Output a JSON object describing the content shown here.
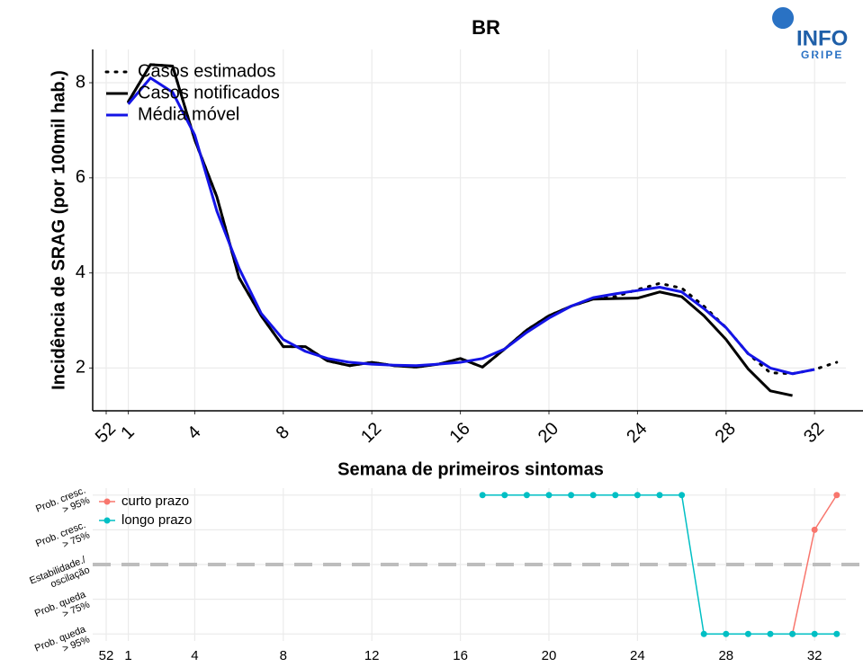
{
  "logo": {
    "top": "INFO",
    "bottom": "GRIPE"
  },
  "chart_data": [
    {
      "type": "line",
      "title": "BR",
      "x_label": "Semana de primeiros sintomas",
      "y_label": "Incidência de SRAG (por 100mil hab.)",
      "categories": [
        "52",
        "1",
        null,
        null,
        "4",
        null,
        null,
        null,
        "8",
        null,
        null,
        null,
        "12",
        null,
        null,
        null,
        "16",
        null,
        null,
        null,
        "20",
        null,
        null,
        null,
        "24",
        null,
        null,
        null,
        "28",
        null,
        null,
        null,
        "32",
        null
      ],
      "ylim": [
        1.1,
        8.7
      ],
      "yticks": [
        2,
        4,
        6,
        8
      ],
      "grid": true,
      "legend": "top-left",
      "series": [
        {
          "name": "Casos estimados",
          "color": "#000000",
          "style": "dotted",
          "values": [
            null,
            7.6,
            8.38,
            8.35,
            6.8,
            5.6,
            3.9,
            3.1,
            2.45,
            2.45,
            2.15,
            2.05,
            2.12,
            2.05,
            2.02,
            2.08,
            2.2,
            2.02,
            2.4,
            2.8,
            3.1,
            3.3,
            3.45,
            3.5,
            3.65,
            3.78,
            3.68,
            3.3,
            2.85,
            2.3,
            1.9,
            1.88,
            1.97,
            2.12
          ]
        },
        {
          "name": "Casos notificados",
          "color": "#000000",
          "style": "solid",
          "values": [
            null,
            7.6,
            8.38,
            8.35,
            6.8,
            5.6,
            3.9,
            3.1,
            2.45,
            2.45,
            2.15,
            2.05,
            2.12,
            2.05,
            2.02,
            2.08,
            2.2,
            2.02,
            2.4,
            2.8,
            3.1,
            3.3,
            3.45,
            3.46,
            3.47,
            3.6,
            3.5,
            3.1,
            2.6,
            1.98,
            1.52,
            1.42,
            null,
            null
          ]
        },
        {
          "name": "Média móvel",
          "color": "#1414e6",
          "style": "solid",
          "values": [
            null,
            7.55,
            8.1,
            7.8,
            6.9,
            5.3,
            4.1,
            3.15,
            2.6,
            2.35,
            2.2,
            2.12,
            2.08,
            2.06,
            2.05,
            2.08,
            2.12,
            2.2,
            2.4,
            2.75,
            3.05,
            3.3,
            3.48,
            3.56,
            3.63,
            3.7,
            3.6,
            3.25,
            2.85,
            2.3,
            2.0,
            1.88,
            1.97,
            null
          ]
        }
      ]
    },
    {
      "type": "line",
      "markers": true,
      "categories": [
        "52",
        "1",
        null,
        null,
        "4",
        null,
        null,
        null,
        "8",
        null,
        null,
        null,
        "12",
        null,
        null,
        null,
        "16",
        null,
        null,
        null,
        "20",
        null,
        null,
        null,
        "24",
        null,
        null,
        null,
        "28",
        null,
        null,
        null,
        "32",
        null
      ],
      "ylim": [
        -2.2,
        2.2
      ],
      "grid": true,
      "legend": "top-left",
      "reference_line": 0,
      "yticks": [
        {
          "value": 2,
          "label": "Prob. cresc.\n> 95%"
        },
        {
          "value": 1,
          "label": "Prob. cresc.\n> 75%"
        },
        {
          "value": 0,
          "label": "Estabilidade./\noscilação"
        },
        {
          "value": -1,
          "label": "Prob. queda\n> 75%"
        },
        {
          "value": -2,
          "label": "Prob. queda\n> 95%"
        }
      ],
      "series": [
        {
          "name": "curto prazo",
          "color": "#f8766d",
          "values": [
            null,
            null,
            null,
            null,
            null,
            null,
            null,
            null,
            null,
            null,
            null,
            null,
            null,
            null,
            null,
            null,
            null,
            null,
            null,
            null,
            null,
            null,
            null,
            null,
            null,
            null,
            null,
            null,
            null,
            null,
            null,
            -2,
            1,
            2
          ]
        },
        {
          "name": "longo prazo",
          "color": "#00bfc4",
          "values": [
            null,
            null,
            null,
            null,
            null,
            null,
            null,
            null,
            null,
            null,
            null,
            null,
            null,
            null,
            null,
            null,
            null,
            2,
            2,
            2,
            2,
            2,
            2,
            2,
            2,
            2,
            2,
            -2,
            -2,
            -2,
            -2,
            -2,
            -2,
            -2
          ]
        }
      ]
    }
  ]
}
